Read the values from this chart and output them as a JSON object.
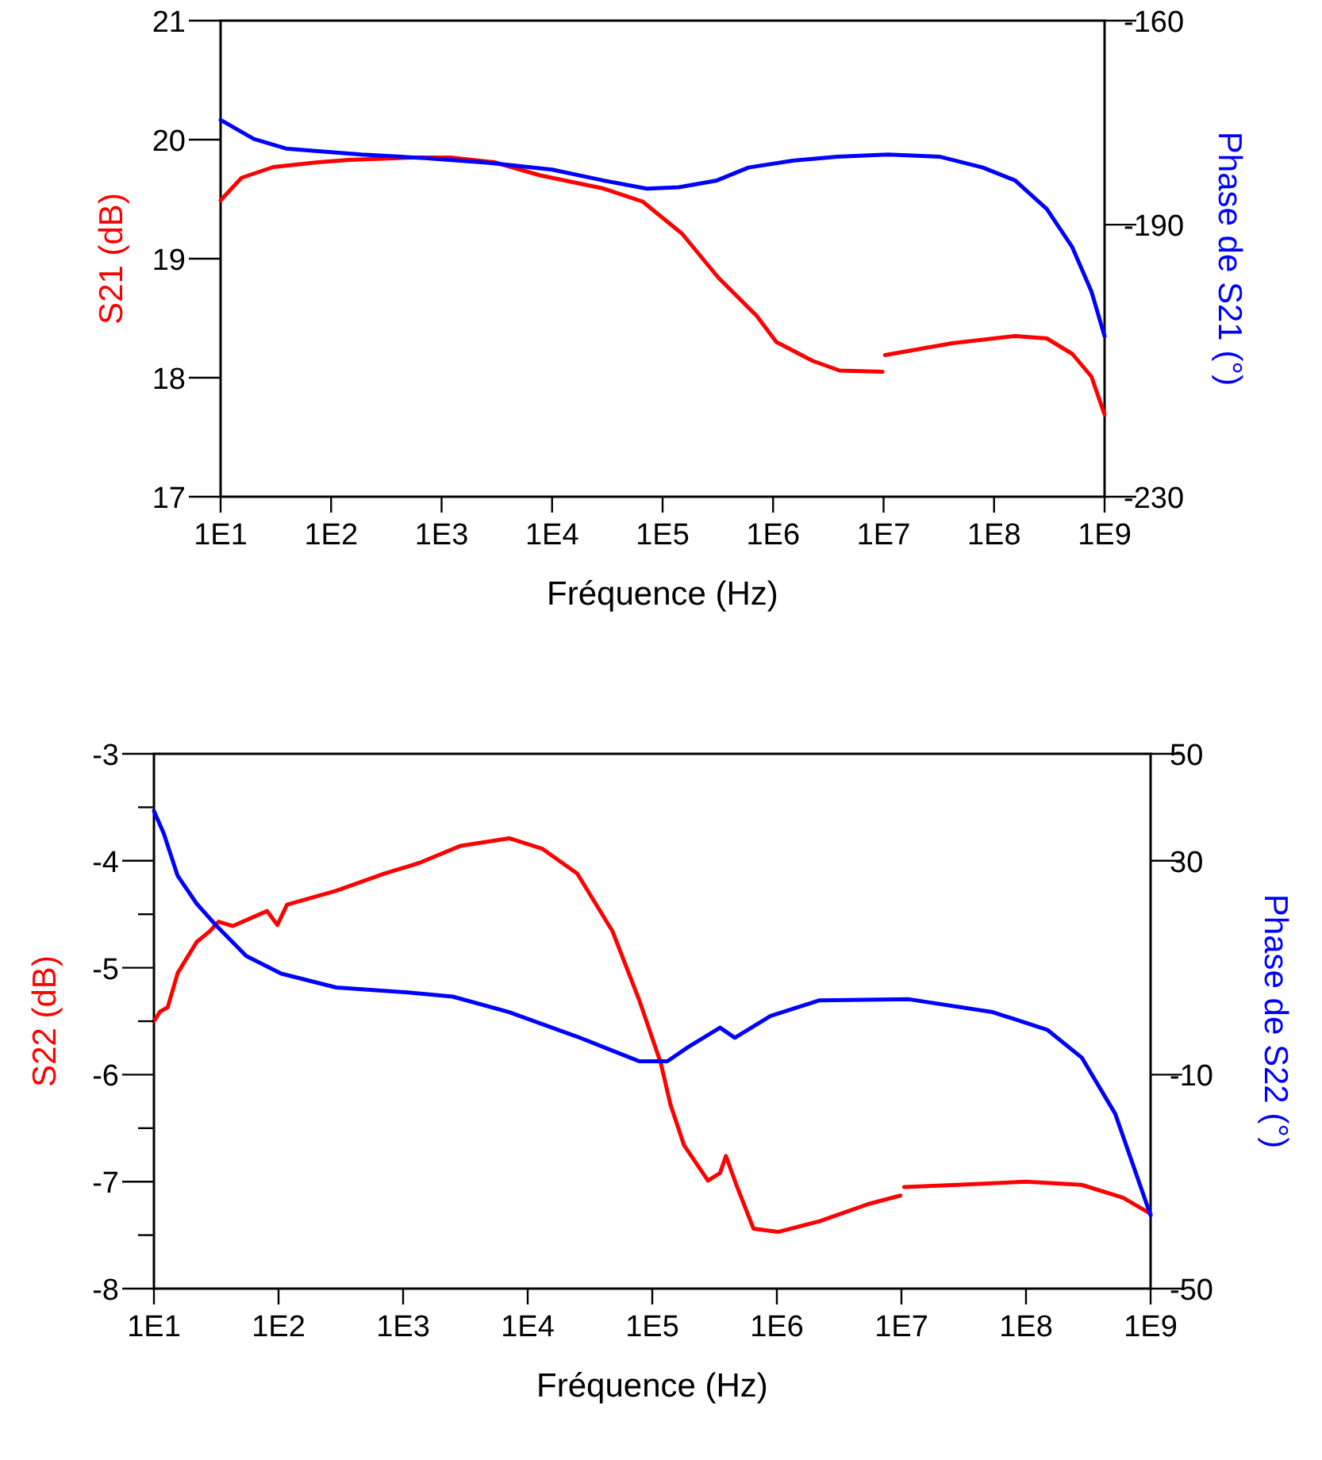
{
  "chart_data": [
    {
      "type": "line",
      "xlabel": "Fréquence (Hz)",
      "ylabel": "S21 (dB)",
      "y2label": "Phase de S21 (°)",
      "log": "x",
      "xlim": [
        10,
        1000000000.0
      ],
      "xticks": [
        {
          "value": 10,
          "label": "1E1"
        },
        {
          "value": 100,
          "label": "1E2"
        },
        {
          "value": 1000,
          "label": "1E3"
        },
        {
          "value": 10000.0,
          "label": "1E4"
        },
        {
          "value": 100000.0,
          "label": "1E5"
        },
        {
          "value": 1000000.0,
          "label": "1E6"
        },
        {
          "value": 10000000.0,
          "label": "1E7"
        },
        {
          "value": 100000000.0,
          "label": "1E8"
        },
        {
          "value": 1000000000.0,
          "label": "1E9"
        }
      ],
      "ylim": [
        17,
        21
      ],
      "yticks": [
        17,
        18,
        19,
        20,
        21
      ],
      "y2lim": [
        -230,
        -160
      ],
      "y2ticks": [
        -230,
        -190,
        -160
      ],
      "series": [
        {
          "color": "#ff0000",
          "x": [
            10,
            15.5,
            30,
            76,
            145,
            550,
            1200,
            3000,
            7800,
            29000.0,
            66000.0,
            150000.0,
            320000.0,
            710000.0,
            1070000.0,
            2300000.0,
            4000000.0,
            9800000.0
          ],
          "values": [
            19.49,
            19.68,
            19.77,
            19.81,
            19.83,
            19.85,
            19.85,
            19.81,
            19.7,
            19.59,
            19.48,
            19.21,
            18.84,
            18.52,
            18.3,
            18.14,
            18.06,
            18.05
          ]
        },
        {
          "color": "#ff0000",
          "x": [
            10300000.0,
            42000000.0,
            155000000.0,
            300000000.0,
            510000000.0,
            760000000.0,
            1000000000.0
          ],
          "values": [
            18.19,
            18.29,
            18.35,
            18.33,
            18.2,
            18.01,
            17.69
          ]
        },
        {
          "color": "#0000ff",
          "axis": "y2",
          "x": [
            10,
            20,
            39,
            76,
            190,
            710,
            2700,
            10000.0,
            29000.0,
            72000.0,
            140000.0,
            310000.0,
            600000.0,
            1500000.0,
            3800000.0,
            11000000.0,
            32000000.0,
            79000000.0,
            155000000.0,
            300000000.0,
            510000000.0,
            760000000.0,
            1000000000.0
          ],
          "values": [
            -174.6,
            -177.4,
            -178.8,
            -179.2,
            -179.7,
            -180.2,
            -180.9,
            -181.9,
            -183.5,
            -184.7,
            -184.5,
            -183.5,
            -181.6,
            -180.6,
            -180,
            -179.7,
            -180,
            -181.6,
            -183.5,
            -187.7,
            -193.3,
            -199.8,
            -206.4
          ]
        }
      ]
    },
    {
      "type": "line",
      "xlabel": "Fréquence (Hz)",
      "ylabel": "S22 (dB)",
      "y2label": "Phase de S22 (°)",
      "log": "x",
      "xlim": [
        10,
        1000000000.0
      ],
      "xticks": [
        {
          "value": 10,
          "label": "1E1"
        },
        {
          "value": 100,
          "label": "1E2"
        },
        {
          "value": 1000,
          "label": "1E3"
        },
        {
          "value": 10000.0,
          "label": "1E4"
        },
        {
          "value": 100000.0,
          "label": "1E5"
        },
        {
          "value": 1000000.0,
          "label": "1E6"
        },
        {
          "value": 10000000.0,
          "label": "1E7"
        },
        {
          "value": 100000000.0,
          "label": "1E8"
        },
        {
          "value": 1000000000.0,
          "label": "1E9"
        }
      ],
      "ylim": [
        -8,
        -3
      ],
      "yticks": [
        -8,
        {
          "value": -7.5,
          "label": null
        },
        -7,
        {
          "value": -6.5,
          "label": null
        },
        -6,
        {
          "value": -5.5,
          "label": null
        },
        -5,
        {
          "value": -4.5,
          "label": null
        },
        -4,
        {
          "value": -3.5,
          "label": null
        },
        -3
      ],
      "y2lim": [
        -50,
        50
      ],
      "y2ticks": [
        -50,
        -10,
        30,
        50
      ],
      "series": [
        {
          "color": "#ff0000",
          "x": [
            10,
            11.2,
            12.9,
            15.5,
            22,
            28,
            33,
            43,
            81,
            98,
            117,
            290,
            710,
            1350,
            2900,
            7100,
            13200.0,
            25000.0,
            48000.0,
            79000.0,
            117000.0,
            140000.0,
            180000.0,
            280000.0,
            350000.0,
            390000.0,
            480000.0,
            650000.0,
            1020000.0,
            2200000.0,
            5400000.0,
            9800000.0
          ],
          "values": [
            -5.5,
            -5.41,
            -5.37,
            -5.05,
            -4.76,
            -4.66,
            -4.57,
            -4.61,
            -4.47,
            -4.6,
            -4.41,
            -4.28,
            -4.12,
            -4.02,
            -3.86,
            -3.79,
            -3.89,
            -4.12,
            -4.66,
            -5.31,
            -5.89,
            -6.28,
            -6.66,
            -6.99,
            -6.92,
            -6.76,
            -7.05,
            -7.44,
            -7.47,
            -7.37,
            -7.21,
            -7.13
          ]
        },
        {
          "color": "#ff0000",
          "x": [
            10500000.0,
            28000000.0,
            100000000.0,
            280000000.0,
            600000000.0,
            1000000000.0
          ],
          "values": [
            -7.05,
            -7.03,
            -7,
            -7.03,
            -7.15,
            -7.3
          ]
        },
        {
          "color": "#0000ff",
          "axis": "y2",
          "x": [
            10,
            12,
            15.5,
            22,
            31,
            55,
            105,
            290,
            1050,
            2500,
            7100,
            25000.0,
            79000.0,
            132000.0,
            195000.0,
            350000.0,
            460000.0,
            890000.0,
            2200000.0,
            11500000.0,
            54000000.0,
            148000000.0,
            280000000.0,
            520000000.0,
            1000000000.0
          ],
          "values": [
            39.3,
            35.1,
            27.2,
            22,
            18.1,
            12.2,
            8.9,
            6.3,
            5.4,
            4.6,
            1.7,
            -2.9,
            -7.5,
            -7.5,
            -4.8,
            -1.2,
            -3.1,
            1,
            3.9,
            4.1,
            1.7,
            -1.6,
            -6.8,
            -17.3,
            -36.3
          ]
        }
      ]
    }
  ]
}
